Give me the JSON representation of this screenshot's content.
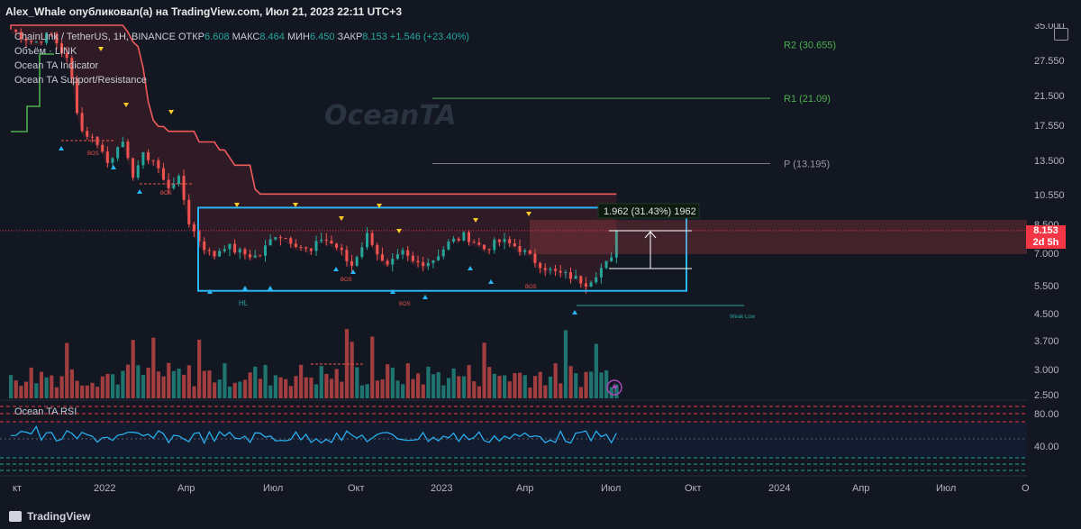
{
  "header": {
    "title": "Alex_Whale опубликовал(а) на TradingView.com, Июл 21, 2023 22:11 UTC+3"
  },
  "legend": {
    "symbol": "ChainLink / TetherUS, 1H, BINANCE",
    "open_label": "ОТКР",
    "open": "6.608",
    "high_label": "МАКС",
    "high": "8.464",
    "low_label": "МИН",
    "low": "6.450",
    "close_label": "ЗАКР",
    "close": "8.153",
    "change": "+1.546 (+23.40%)",
    "indicators": [
      "Объём · LINK",
      "Ocean TA Indicator",
      "Ocean TA Support/Resistance"
    ]
  },
  "watermark": "OceanTA",
  "rsi_label": "Ocean TA RSI",
  "footer_brand": "TradingView",
  "colors": {
    "bg": "#131722",
    "up": "#26a69a",
    "down": "#ef5350",
    "box": "#29b6f6",
    "resistance": "#f05a5a"
  },
  "price_tag": {
    "price": "8.153",
    "time": "2d 5h"
  },
  "chart_data": {
    "type": "candlestick",
    "title": "ChainLink / TetherUS, 1H, BINANCE",
    "x_ticks": [
      "кт",
      "2022",
      "Апр",
      "Июл",
      "Окт",
      "2023",
      "Апр",
      "Июл",
      "Окт",
      "2024",
      "Апр",
      "Июл",
      "О"
    ],
    "y_ticks": [
      "35.000",
      "27.550",
      "21.500",
      "17.550",
      "13.500",
      "10.550",
      "8.500",
      "7.000",
      "5.500",
      "4.500",
      "3.700",
      "3.000",
      "2.500"
    ],
    "pivot_levels": [
      {
        "label": "R2 (30.655)",
        "value": 30.655
      },
      {
        "label": "R1 (21.09)",
        "value": 21.09
      },
      {
        "label": "P (13.195)",
        "value": 13.195
      }
    ],
    "measure_label": "1.962 (31.43%) 1962",
    "weak_low_label": "Weak Low",
    "bos_label": "BOS",
    "hl_label": "HL",
    "range_box": {
      "top": 9.6,
      "bottom": 5.3
    },
    "rsi_ticks": [
      "80.00",
      "40.00"
    ],
    "last_price": 8.153
  }
}
